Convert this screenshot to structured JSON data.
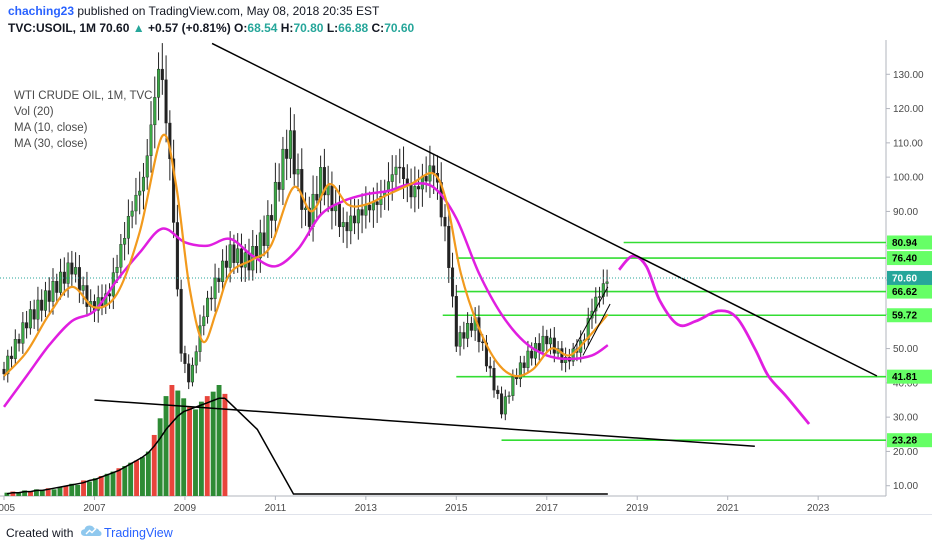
{
  "header": {
    "author": "chaching23",
    "publish_text": "published on TradingView.com, May 08, 2018 20:35 EST",
    "symbol": "TVC:USOIL, 1M",
    "last": "70.60",
    "change_arrow": "▲",
    "change": "+0.57 (+0.81%)",
    "o_label": "O:",
    "o_value": "68.54",
    "h_label": "H:",
    "h_value": "70.80",
    "l_label": "L:",
    "l_value": "66.88",
    "c_label": "C:",
    "c_value": "70.60"
  },
  "legend": {
    "title": "WTI CRUDE OIL, 1M, TVC",
    "vol": "Vol (20)",
    "ma10": "MA (10, close)",
    "ma30": "MA (30, close)"
  },
  "footer": {
    "created_with": "Created with",
    "brand": "TradingView"
  },
  "colors": {
    "ma10": "#f29a1d",
    "ma30": "#e01ee0",
    "up_candle": "#26a69a",
    "down_candle": "#ef5350",
    "level_line": "#33dd33",
    "trend_line": "#000000",
    "label_bg": "#66ff66",
    "current_price_bg": "#26a69a"
  },
  "chart_data": {
    "type": "candlestick",
    "title": "WTI CRUDE OIL, 1M, TVC",
    "y_ticks": [
      10,
      20,
      30,
      40,
      50,
      60,
      70,
      80,
      90,
      100,
      110,
      120,
      130
    ],
    "y_tick_labels": [
      "10.00",
      "20.00",
      "30.00",
      "40.00",
      "50.00",
      "60.00",
      "70.00",
      "80.00",
      "90.00",
      "100.00",
      "110.00",
      "120.00",
      "130.00"
    ],
    "ylim": [
      7,
      140
    ],
    "xlim": [
      2005.0,
      2024.5
    ],
    "x_ticks": [
      2005,
      2007,
      2009,
      2011,
      2013,
      2015,
      2017,
      2019,
      2021,
      2023
    ],
    "x_tick_labels": [
      "2005",
      "2007",
      "2009",
      "2011",
      "2013",
      "2015",
      "2017",
      "2019",
      "2021",
      "2023"
    ],
    "current_price": 70.6,
    "current_price_label": "70.60",
    "price_path": [
      [
        2005.0,
        44
      ],
      [
        2005.5,
        58
      ],
      [
        2006.0,
        66
      ],
      [
        2006.5,
        74
      ],
      [
        2006.9,
        62
      ],
      [
        2007.3,
        65
      ],
      [
        2007.8,
        90
      ],
      [
        2008.1,
        100
      ],
      [
        2008.45,
        135
      ],
      [
        2008.7,
        100
      ],
      [
        2008.9,
        50
      ],
      [
        2009.1,
        40
      ],
      [
        2009.4,
        60
      ],
      [
        2009.7,
        70
      ],
      [
        2010.0,
        78
      ],
      [
        2010.4,
        75
      ],
      [
        2010.8,
        84
      ],
      [
        2011.3,
        112
      ],
      [
        2011.7,
        86
      ],
      [
        2012.0,
        100
      ],
      [
        2012.5,
        85
      ],
      [
        2012.9,
        90
      ],
      [
        2013.3,
        93
      ],
      [
        2013.7,
        104
      ],
      [
        2014.0,
        95
      ],
      [
        2014.5,
        103
      ],
      [
        2014.8,
        80
      ],
      [
        2015.0,
        52
      ],
      [
        2015.4,
        58
      ],
      [
        2015.7,
        45
      ],
      [
        2016.0,
        32
      ],
      [
        2016.3,
        42
      ],
      [
        2016.6,
        48
      ],
      [
        2017.0,
        53
      ],
      [
        2017.4,
        46
      ],
      [
        2017.8,
        52
      ],
      [
        2018.0,
        62
      ],
      [
        2018.35,
        70.6
      ]
    ],
    "ma10": [
      [
        2005.0,
        42
      ],
      [
        2005.5,
        49
      ],
      [
        2006.0,
        60
      ],
      [
        2006.5,
        68
      ],
      [
        2007.0,
        62
      ],
      [
        2007.5,
        66
      ],
      [
        2008.0,
        84
      ],
      [
        2008.5,
        112
      ],
      [
        2008.8,
        98
      ],
      [
        2009.1,
        68
      ],
      [
        2009.4,
        52
      ],
      [
        2009.7,
        61
      ],
      [
        2010.0,
        72
      ],
      [
        2010.5,
        76
      ],
      [
        2010.9,
        80
      ],
      [
        2011.4,
        97
      ],
      [
        2011.8,
        90
      ],
      [
        2012.2,
        98
      ],
      [
        2012.6,
        92
      ],
      [
        2013.0,
        92
      ],
      [
        2013.5,
        95
      ],
      [
        2014.0,
        98
      ],
      [
        2014.5,
        101
      ],
      [
        2014.8,
        92
      ],
      [
        2015.1,
        72
      ],
      [
        2015.5,
        56
      ],
      [
        2015.9,
        46
      ],
      [
        2016.3,
        42
      ],
      [
        2016.7,
        44
      ],
      [
        2017.1,
        50
      ],
      [
        2017.5,
        48
      ],
      [
        2017.9,
        53
      ],
      [
        2018.35,
        60
      ]
    ],
    "ma30": [
      [
        2005.0,
        33
      ],
      [
        2005.5,
        42
      ],
      [
        2006.0,
        51
      ],
      [
        2006.5,
        58
      ],
      [
        2007.0,
        61
      ],
      [
        2007.5,
        70
      ],
      [
        2008.0,
        78
      ],
      [
        2008.5,
        85
      ],
      [
        2009.0,
        81
      ],
      [
        2009.5,
        80
      ],
      [
        2010.0,
        82
      ],
      [
        2010.5,
        77
      ],
      [
        2011.0,
        74
      ],
      [
        2011.5,
        79
      ],
      [
        2012.0,
        89
      ],
      [
        2012.5,
        93
      ],
      [
        2013.0,
        95
      ],
      [
        2013.5,
        96
      ],
      [
        2014.0,
        98
      ],
      [
        2014.5,
        97
      ],
      [
        2015.0,
        88
      ],
      [
        2015.5,
        72
      ],
      [
        2016.0,
        60
      ],
      [
        2016.5,
        52
      ],
      [
        2017.0,
        48
      ],
      [
        2017.5,
        47
      ],
      [
        2018.0,
        48
      ],
      [
        2018.35,
        51
      ]
    ],
    "projection": [
      [
        2018.6,
        73
      ],
      [
        2018.9,
        77
      ],
      [
        2019.2,
        74
      ],
      [
        2019.5,
        64
      ],
      [
        2019.9,
        57
      ],
      [
        2020.3,
        58
      ],
      [
        2020.8,
        61
      ],
      [
        2021.2,
        59
      ],
      [
        2021.6,
        50
      ],
      [
        2021.9,
        42
      ],
      [
        2022.3,
        36
      ],
      [
        2022.8,
        28
      ]
    ],
    "horizontal_levels": [
      {
        "value": 80.94,
        "label": "80.94",
        "x_start": 2018.7
      },
      {
        "value": 76.4,
        "label": "76.40",
        "x_start": 2015.0
      },
      {
        "value": 66.62,
        "label": "66.62",
        "x_start": 2015.0
      },
      {
        "value": 59.72,
        "label": "59.72",
        "x_start": 2014.7
      },
      {
        "value": 41.81,
        "label": "41.81",
        "x_start": 2015.0
      },
      {
        "value": 23.28,
        "label": "23.28",
        "x_start": 2016.0
      }
    ],
    "trendlines": [
      {
        "name": "upper-trendline",
        "points": [
          [
            2009.6,
            139
          ],
          [
            2024.3,
            42
          ]
        ]
      },
      {
        "name": "lower-trendline",
        "points": [
          [
            2007.0,
            35
          ],
          [
            2021.6,
            21.5
          ]
        ]
      }
    ],
    "volume": {
      "x_start": 2005.0,
      "x_end": 2009.95,
      "bars": [
        3,
        4,
        3,
        5,
        4,
        6,
        5,
        7,
        6,
        8,
        9,
        11,
        10,
        14,
        13,
        16,
        18,
        20,
        22,
        25,
        27,
        30,
        32,
        35,
        40,
        55,
        70,
        90,
        100,
        95,
        88,
        80,
        78,
        85,
        90,
        94,
        100,
        92
      ],
      "vol_ma": [
        2,
        3,
        3,
        4,
        4,
        5,
        5,
        6,
        7,
        8,
        9,
        10,
        11,
        12,
        14,
        15,
        17,
        19,
        21,
        23,
        26,
        29,
        32,
        35,
        39,
        45,
        52,
        60,
        66,
        72,
        76,
        78,
        80,
        82,
        84,
        86,
        88,
        88
      ]
    }
  }
}
